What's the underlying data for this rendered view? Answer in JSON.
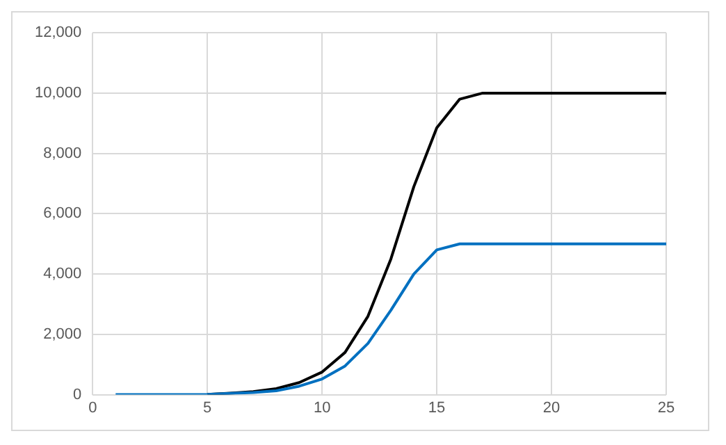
{
  "chart_data": {
    "type": "line",
    "x": [
      1,
      2,
      3,
      4,
      5,
      6,
      7,
      8,
      9,
      10,
      11,
      12,
      13,
      14,
      15,
      16,
      17,
      18,
      19,
      20,
      21,
      22,
      23,
      24,
      25
    ],
    "series": [
      {
        "color": "#000000",
        "values": [
          null,
          null,
          null,
          null,
          10,
          50,
          100,
          200,
          400,
          750,
          1400,
          2600,
          4500,
          6900,
          8850,
          9800,
          10000,
          10000,
          10000,
          10000,
          10000,
          10000,
          10000,
          10000,
          10000
        ]
      },
      {
        "color": "#0070c0",
        "values": [
          0,
          0,
          0,
          0,
          10,
          40,
          70,
          130,
          280,
          520,
          950,
          1700,
          2800,
          4000,
          4800,
          5000,
          5000,
          5000,
          5000,
          5000,
          5000,
          5000,
          5000,
          5000,
          5000
        ]
      }
    ],
    "xlim": [
      0,
      25
    ],
    "xticks": [
      0,
      5,
      10,
      15,
      20,
      25
    ],
    "ylim": [
      0,
      12000
    ],
    "yticks": [
      {
        "value": 0,
        "label": "0"
      },
      {
        "value": 2000,
        "label": "2,000"
      },
      {
        "value": 4000,
        "label": "4,000"
      },
      {
        "value": 6000,
        "label": "6,000"
      },
      {
        "value": 8000,
        "label": "8,000"
      },
      {
        "value": 10000,
        "label": "10,000"
      },
      {
        "value": 12000,
        "label": "12,000"
      }
    ],
    "grid": true,
    "marker": "none",
    "line_style": "solid",
    "legend": false
  }
}
